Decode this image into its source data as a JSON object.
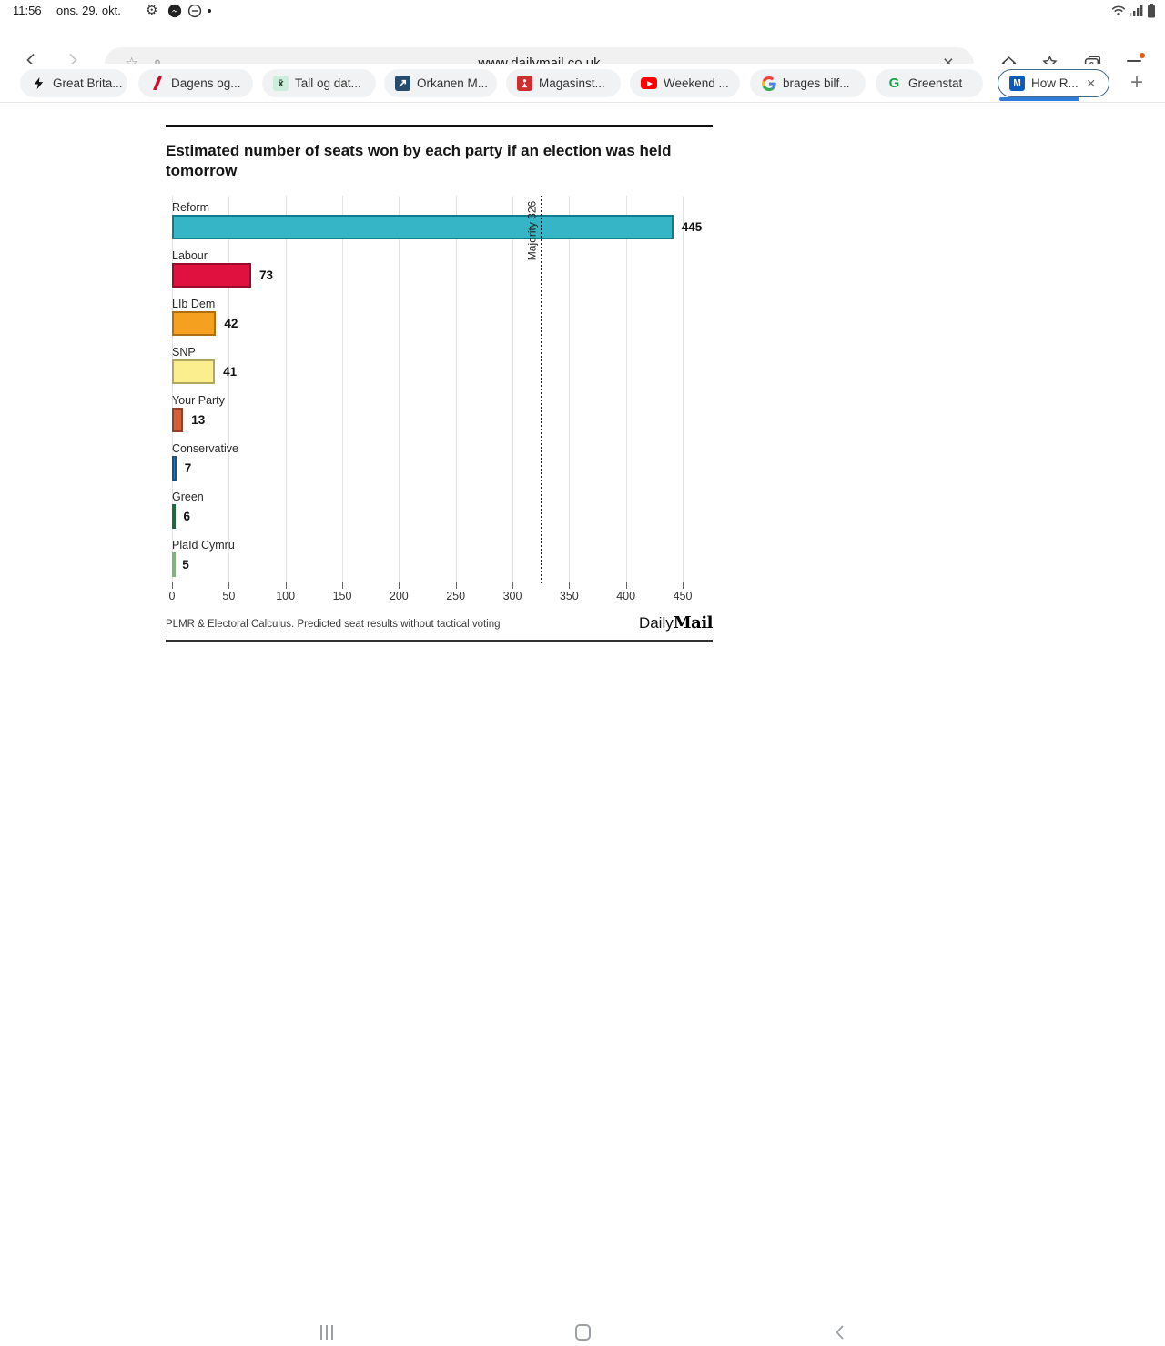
{
  "status_bar": {
    "time": "11:56",
    "date": "ons. 29. okt."
  },
  "browser": {
    "url": "www.dailymail.co.uk",
    "tab_count": "9",
    "new_tab_label": "+"
  },
  "icons": {
    "gear": "⚙",
    "star_outline": "☆",
    "close": "×",
    "stats_glyph": "x̄",
    "greenstat_letter": "G",
    "mail_letter": "M"
  },
  "tabs": {
    "active_index": 8,
    "items": [
      {
        "label": "Great Brita...",
        "icon": "lightning-icon"
      },
      {
        "label": "Dagens og...",
        "icon": "red-slash-icon"
      },
      {
        "label": "Tall og dat...",
        "icon": "statistics-icon"
      },
      {
        "label": "Orkanen M...",
        "icon": "navy-site-icon"
      },
      {
        "label": "Magasinst...",
        "icon": "red-site-icon"
      },
      {
        "label": "Weekend ...",
        "icon": "youtube-icon"
      },
      {
        "label": "brages bilf...",
        "icon": "google-icon"
      },
      {
        "label": "Greenstat",
        "icon": "greenstat-icon"
      },
      {
        "label": "How R...",
        "icon": "dailymail-icon"
      }
    ]
  },
  "page": {
    "title": "Estimated number of seats won by each party if an election was held tomorrow",
    "logo": {
      "daily": "Daily",
      "mail": "Mail"
    }
  },
  "chart_data": {
    "type": "bar",
    "orientation": "horizontal",
    "title": "Estimated number of seats won by each party if an election was held tomorrow",
    "categories": [
      "Reform",
      "Labour",
      "LIb Dem",
      "SNP",
      "Your Party",
      "Conservative",
      "Green",
      "PlaId Cymru"
    ],
    "values": [
      445,
      73,
      42,
      41,
      13,
      7,
      6,
      5
    ],
    "bar_colors": [
      "#35b5c6",
      "#e0103f",
      "#f5a01e",
      "#fbee8e",
      "#d2603a",
      "#2478d4",
      "#2f9e5b",
      "#b9ecb4"
    ],
    "bar_border_colors": [
      "#0e7c8f",
      "#9c0b2c",
      "#b06f0e",
      "#b3a75f",
      "#93402a",
      "#15508f",
      "#1d6a3c",
      "#7fb47c"
    ],
    "xlabel": "",
    "ylabel": "",
    "xlim": [
      0,
      450
    ],
    "x_ticks": [
      0,
      50,
      100,
      150,
      200,
      250,
      300,
      350,
      400,
      450
    ],
    "grid": true,
    "legend": false,
    "reference_line": {
      "value": 326,
      "label": "Majority 326"
    },
    "source": "PLMR & Electoral Calculus. Predicted seat results without tactical voting"
  }
}
